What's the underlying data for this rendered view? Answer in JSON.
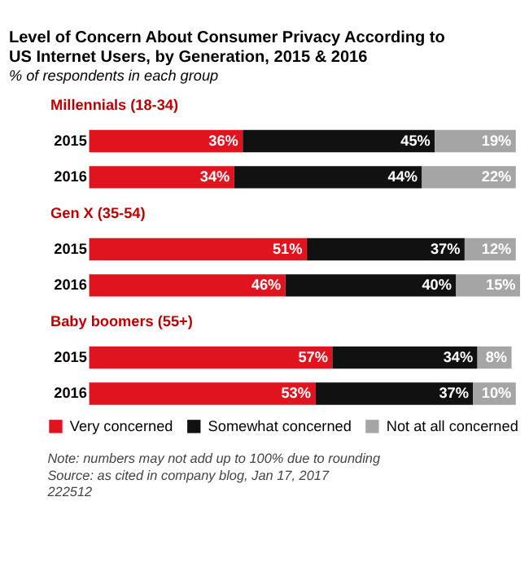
{
  "chart_data": {
    "type": "bar",
    "orientation": "horizontal",
    "stacked": true,
    "title": "Level of Concern About Consumer Privacy According to US Internet Users, by Generation, 2015 & 2016",
    "subtitle": "% of respondents in each group",
    "categories": [
      "2015",
      "2016",
      "2015",
      "2016",
      "2015",
      "2016"
    ],
    "series": [
      {
        "name": "Very concerned",
        "color": "#e0141e",
        "values": [
          36,
          34,
          51,
          46,
          57,
          53
        ],
        "value_labels": [
          "36%",
          "34%",
          "51%",
          "46%",
          "57%",
          "53%"
        ]
      },
      {
        "name": "Somewhat concerned",
        "color": "#111111",
        "values": [
          45,
          44,
          37,
          40,
          34,
          37
        ],
        "value_labels": [
          "45%",
          "44%",
          "37%",
          "40%",
          "34%",
          "37%"
        ]
      },
      {
        "name": "Not at all concerned",
        "color": "#a5a5a5",
        "values": [
          19,
          22,
          12,
          15,
          8,
          10
        ],
        "value_labels": [
          "19%",
          "22%",
          "12%",
          "15%",
          "8%",
          "10%"
        ]
      }
    ],
    "annotations": [
      "Millennials (18-34)",
      "Gen X (35-54)",
      "Baby boomers (55+)",
      "Note: numbers may not add up to 100% due to rounding",
      "Source: as cited in company blog, Jan 17, 2017",
      "222512"
    ],
    "legend": "bottom"
  }
}
